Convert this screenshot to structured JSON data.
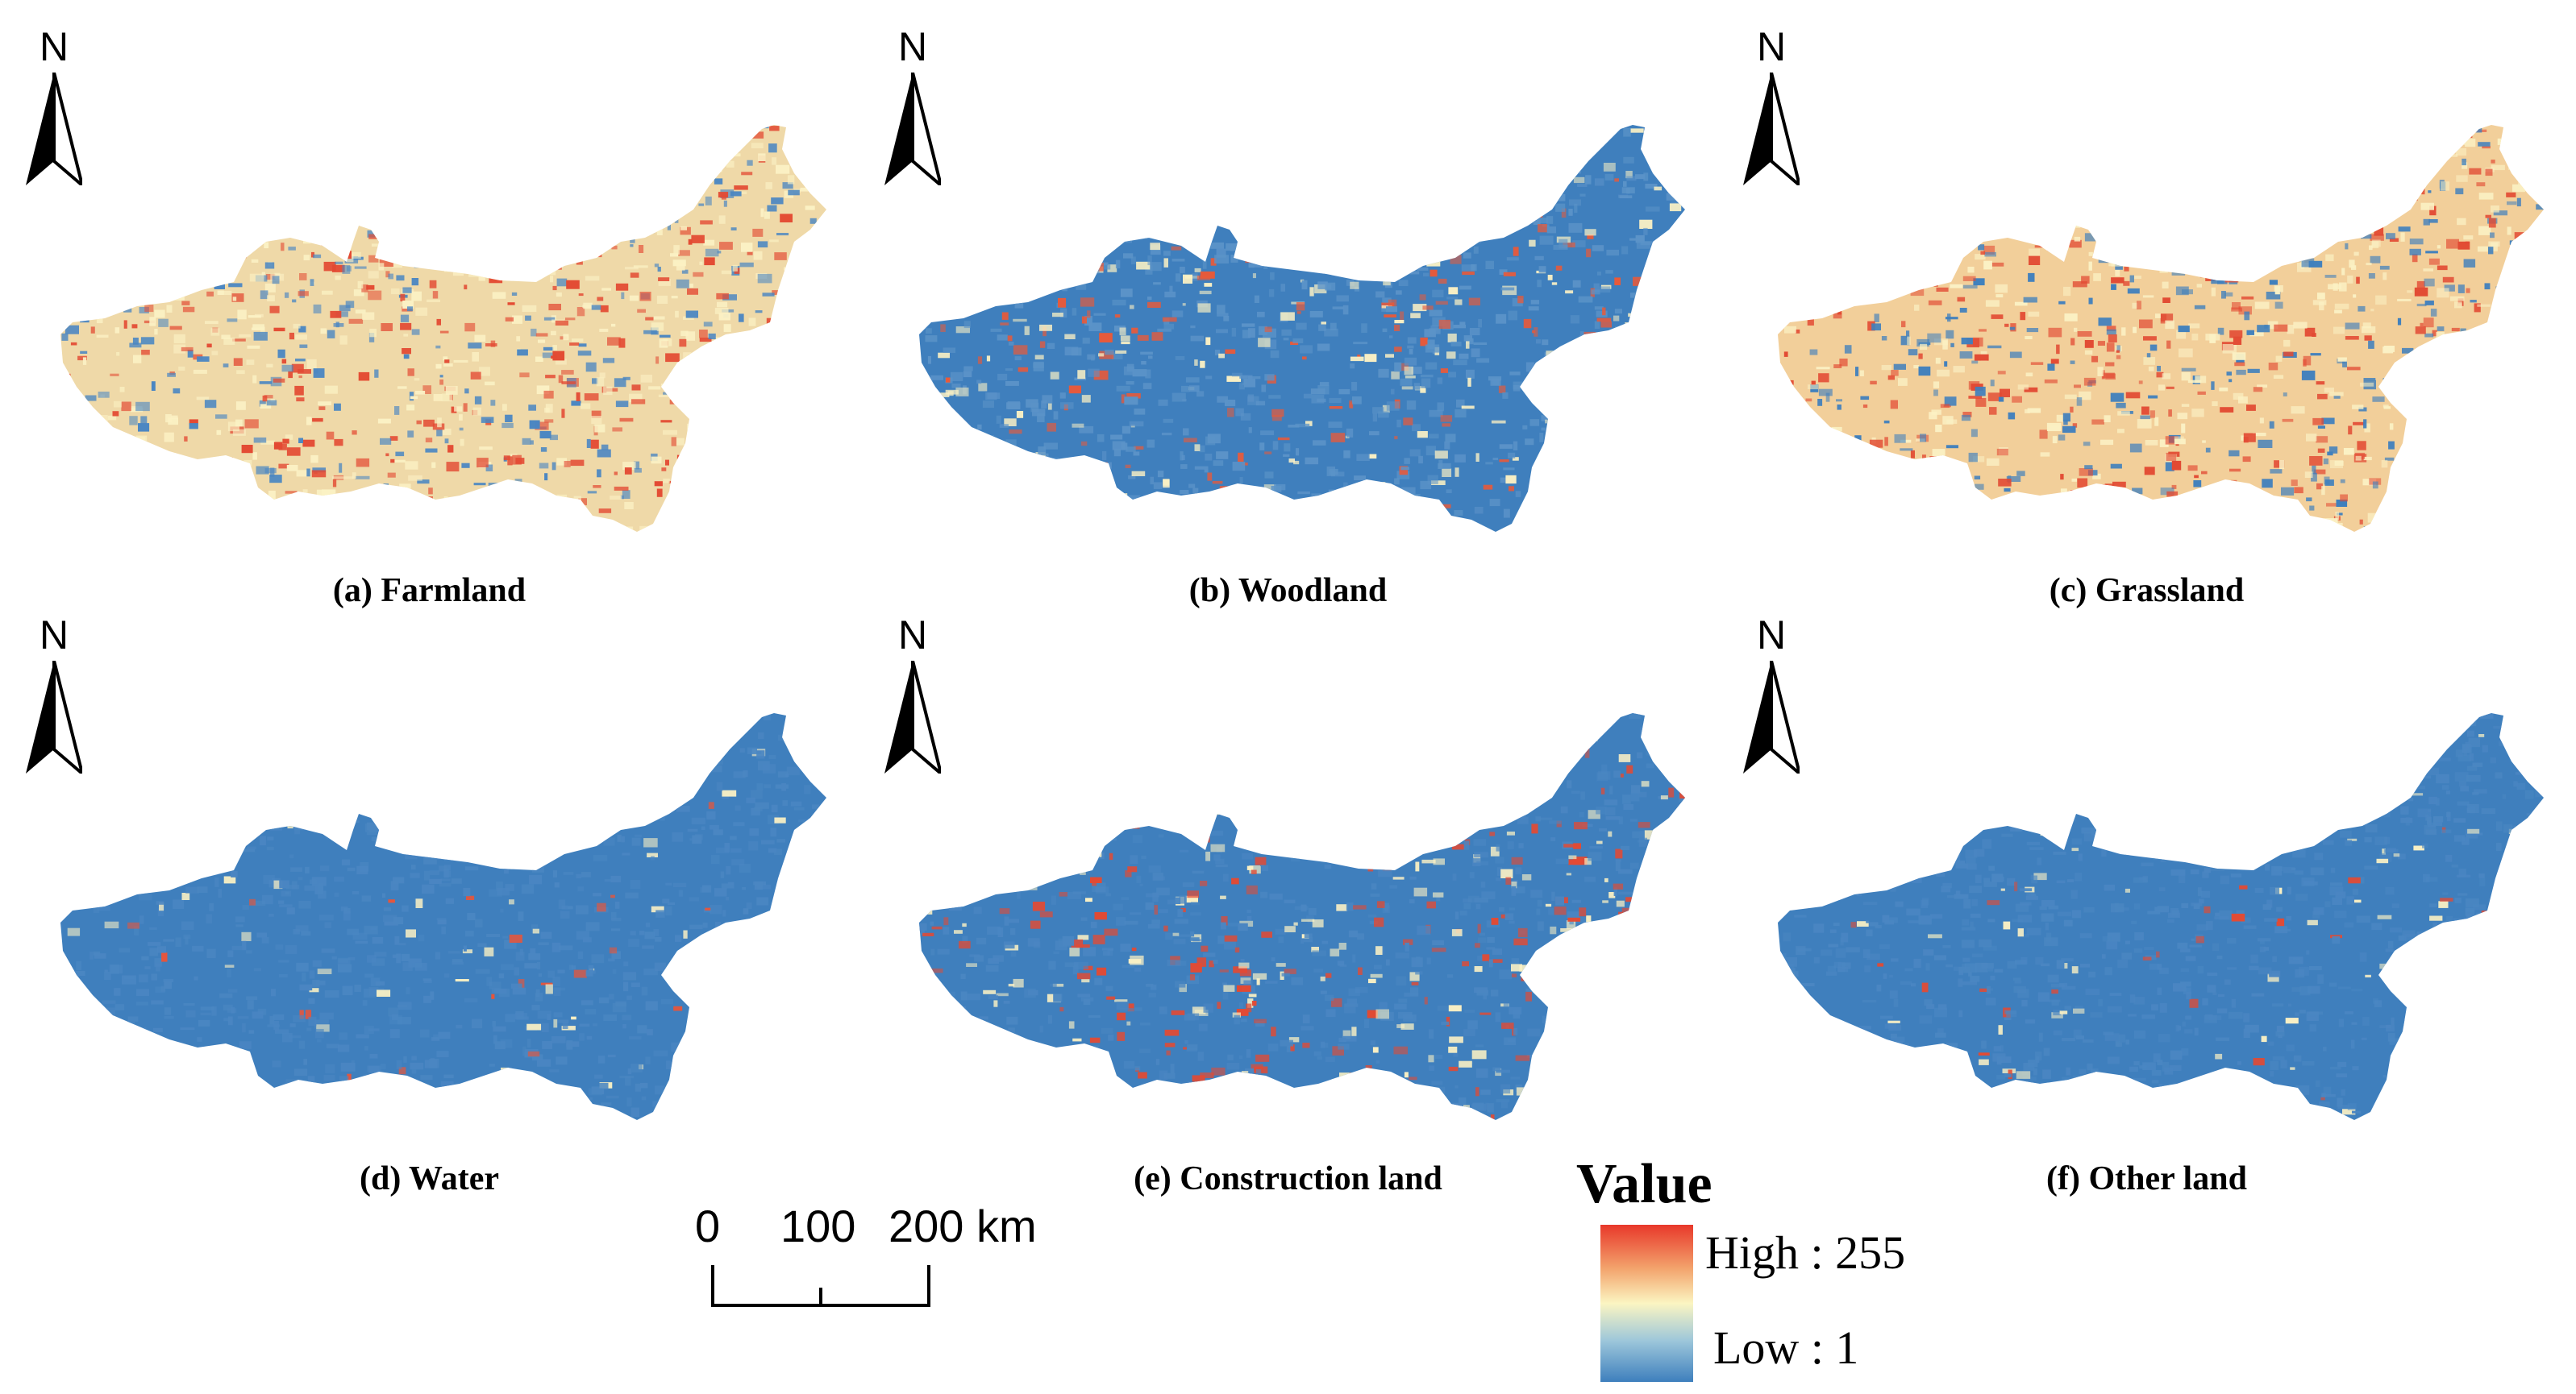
{
  "panels": [
    {
      "caption": "(a) Farmland",
      "north": "N",
      "pattern": {
        "base": "#efd9a8",
        "hot": "#e34a33",
        "cool": "#4a86c2",
        "hot_share": 0.32,
        "cool_share": 0.28
      }
    },
    {
      "caption": "(b) Woodland",
      "north": "N",
      "pattern": {
        "base": "#3f7fbd",
        "hot": "#e85a3a",
        "cool": "#5b93c8",
        "hot_share": 0.18,
        "cool_share": 0.62
      }
    },
    {
      "caption": "(c) Grassland",
      "north": "N",
      "pattern": {
        "base": "#f2cf9a",
        "hot": "#e24a33",
        "cool": "#3f7fbd",
        "hot_share": 0.36,
        "cool_share": 0.3
      }
    },
    {
      "caption": "(d) Water",
      "north": "N",
      "pattern": {
        "base": "#3f7fbd",
        "hot": "#e8553a",
        "cool": "#4a86c2",
        "hot_share": 0.04,
        "cool_share": 0.9
      }
    },
    {
      "caption": "(e) Construction land",
      "north": "N",
      "pattern": {
        "base": "#3f7fbd",
        "hot": "#e34a33",
        "cool": "#4a86c2",
        "hot_share": 0.22,
        "cool_share": 0.6
      }
    },
    {
      "caption": "(f) Other land",
      "north": "N",
      "pattern": {
        "base": "#3f7fbd",
        "hot": "#e34a33",
        "cool": "#4a86c2",
        "hot_share": 0.03,
        "cool_share": 0.9
      }
    }
  ],
  "scale_bar": {
    "labels": [
      "0",
      "100",
      "200 km"
    ]
  },
  "legend": {
    "title": "Value",
    "high_label": "High : 255",
    "low_label": "Low : 1",
    "colors": {
      "high": "#e8382a",
      "mid": "#fbf5c2",
      "low": "#3e7fbd"
    }
  }
}
